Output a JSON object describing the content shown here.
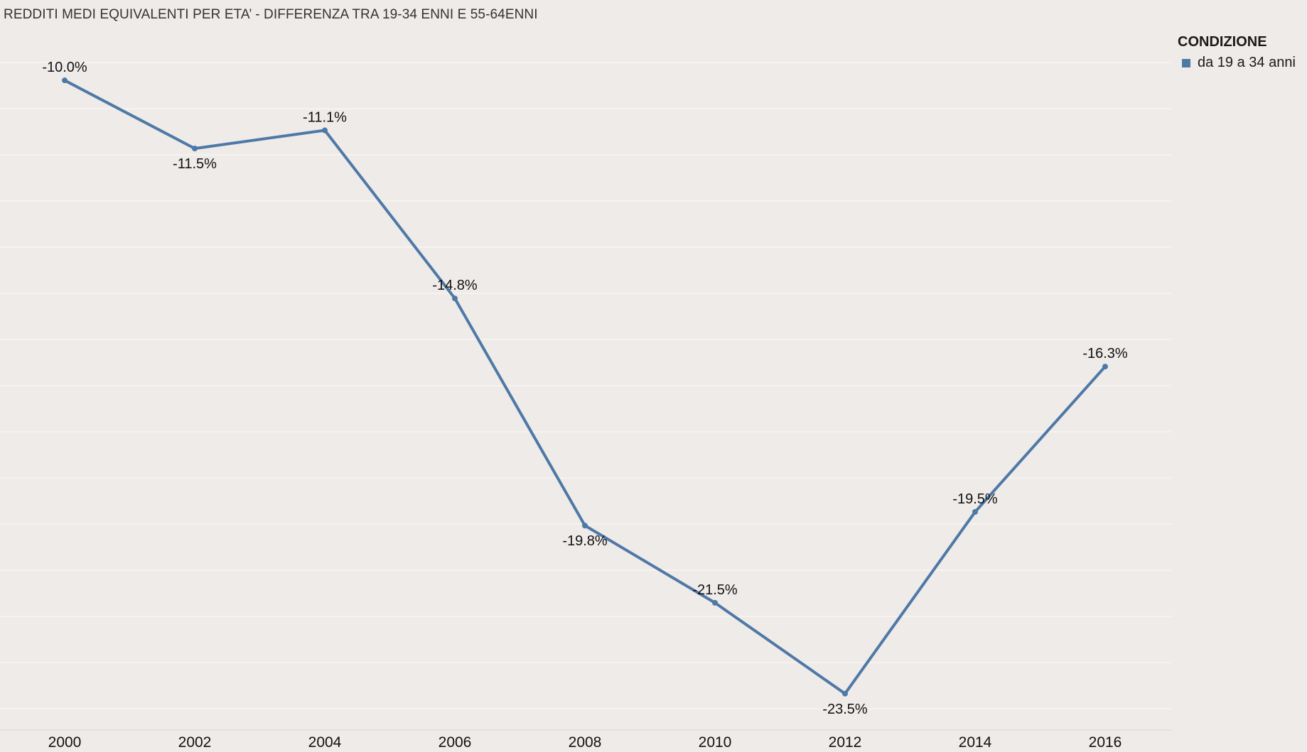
{
  "colors": {
    "background": "#efebe8",
    "series": "#4e79a7",
    "grid": "#f7f5f3",
    "axis": "#d8d4d0"
  },
  "chart_data": {
    "type": "line",
    "title": "REDDITI MEDI EQUIVALENTI PER ETA’ -  DIFFERENZA TRA 19-34 ENNI E 55-64ENNI",
    "x": [
      "2000",
      "2002",
      "2004",
      "2006",
      "2008",
      "2010",
      "2012",
      "2014",
      "2016"
    ],
    "series": [
      {
        "name": "da 19 a 34 anni",
        "values": [
          -10.0,
          -11.5,
          -11.1,
          -14.8,
          -19.8,
          -21.5,
          -23.5,
          -19.5,
          -16.3
        ],
        "labels": [
          "-10.0%",
          "-11.5%",
          "-11.1%",
          "-14.8%",
          "-19.8%",
          "-21.5%",
          "-23.5%",
          "-19.5%",
          "-16.3%"
        ],
        "label_position": [
          "above",
          "below",
          "above",
          "above",
          "below",
          "above",
          "below",
          "above",
          "above"
        ]
      }
    ],
    "ylim": [
      -24.3,
      -8.7
    ],
    "grid": true,
    "legend": {
      "title": "CONDIZIONE",
      "placement": "top-right"
    }
  }
}
